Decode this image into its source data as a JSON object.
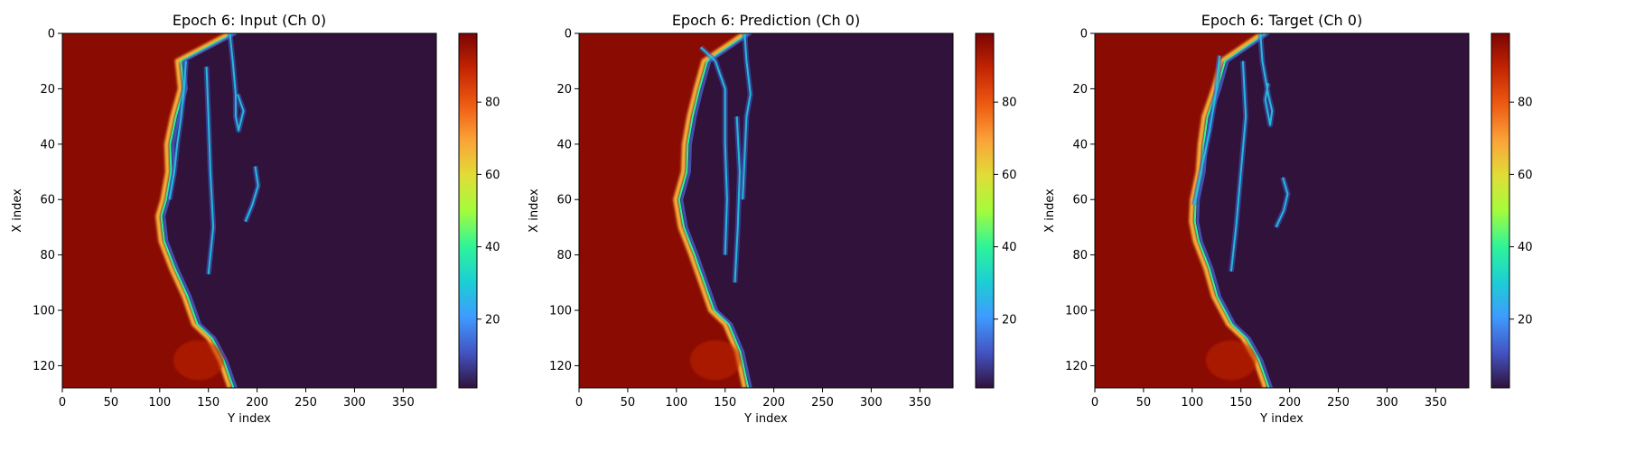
{
  "chart_data": [
    {
      "type": "heatmap",
      "title": "Epoch 6: Input (Ch 0)",
      "xlabel": "Y index",
      "ylabel": "X index",
      "xlim": [
        0,
        384
      ],
      "ylim": [
        128,
        0
      ],
      "xticks": [
        0,
        50,
        100,
        150,
        200,
        250,
        300,
        350
      ],
      "yticks": [
        0,
        20,
        40,
        60,
        80,
        100,
        120
      ],
      "colorbar_range": [
        1,
        99
      ],
      "colorbar_ticks": [
        20,
        40,
        60,
        80
      ],
      "colormap": "turbo",
      "front_profile": [
        {
          "x": 0,
          "y": 172
        },
        {
          "x": 10,
          "y": 118
        },
        {
          "x": 20,
          "y": 121
        },
        {
          "x": 30,
          "y": 113
        },
        {
          "x": 40,
          "y": 107
        },
        {
          "x": 50,
          "y": 108
        },
        {
          "x": 60,
          "y": 103
        },
        {
          "x": 66,
          "y": 98
        },
        {
          "x": 75,
          "y": 101
        },
        {
          "x": 85,
          "y": 112
        },
        {
          "x": 95,
          "y": 125
        },
        {
          "x": 105,
          "y": 135
        },
        {
          "x": 110,
          "y": 150
        },
        {
          "x": 118,
          "y": 162
        },
        {
          "x": 128,
          "y": 172
        }
      ],
      "filaments": [
        [
          [
            0,
            172
          ],
          [
            10,
            175
          ],
          [
            22,
            178
          ],
          [
            30,
            178
          ],
          [
            35,
            181
          ],
          [
            28,
            186
          ],
          [
            22,
            180
          ]
        ],
        [
          [
            10,
            127
          ],
          [
            20,
            125
          ],
          [
            30,
            122
          ],
          [
            40,
            118
          ],
          [
            50,
            115
          ],
          [
            60,
            110
          ]
        ],
        [
          [
            12,
            148
          ],
          [
            30,
            150
          ],
          [
            50,
            152
          ],
          [
            70,
            155
          ],
          [
            87,
            150
          ]
        ],
        [
          [
            48,
            198
          ],
          [
            55,
            201
          ],
          [
            62,
            195
          ],
          [
            68,
            188
          ]
        ]
      ]
    },
    {
      "type": "heatmap",
      "title": "Epoch 6: Prediction (Ch 0)",
      "xlabel": "Y index",
      "ylabel": "X index",
      "xlim": [
        0,
        384
      ],
      "ylim": [
        128,
        0
      ],
      "xticks": [
        0,
        50,
        100,
        150,
        200,
        250,
        300,
        350
      ],
      "yticks": [
        0,
        20,
        40,
        60,
        80,
        100,
        120
      ],
      "colorbar_range": [
        1,
        99
      ],
      "colorbar_ticks": [
        20,
        40,
        60,
        80
      ],
      "colormap": "turbo",
      "front_profile": [
        {
          "x": 0,
          "y": 170
        },
        {
          "x": 10,
          "y": 128
        },
        {
          "x": 20,
          "y": 120
        },
        {
          "x": 30,
          "y": 113
        },
        {
          "x": 40,
          "y": 108
        },
        {
          "x": 50,
          "y": 107
        },
        {
          "x": 60,
          "y": 99
        },
        {
          "x": 70,
          "y": 104
        },
        {
          "x": 80,
          "y": 115
        },
        {
          "x": 90,
          "y": 125
        },
        {
          "x": 100,
          "y": 135
        },
        {
          "x": 105,
          "y": 150
        },
        {
          "x": 115,
          "y": 162
        },
        {
          "x": 128,
          "y": 170
        }
      ],
      "filaments": [
        [
          [
            0,
            170
          ],
          [
            10,
            172
          ],
          [
            22,
            176
          ],
          [
            30,
            172
          ],
          [
            45,
            170
          ],
          [
            60,
            168
          ]
        ],
        [
          [
            5,
            125
          ],
          [
            10,
            140
          ],
          [
            20,
            150
          ],
          [
            40,
            150
          ],
          [
            60,
            152
          ],
          [
            80,
            150
          ]
        ],
        [
          [
            30,
            162
          ],
          [
            50,
            165
          ],
          [
            70,
            163
          ],
          [
            90,
            160
          ]
        ]
      ]
    },
    {
      "type": "heatmap",
      "title": "Epoch 6: Target (Ch 0)",
      "xlabel": "Y index",
      "ylabel": "X index",
      "xlim": [
        0,
        384
      ],
      "ylim": [
        128,
        0
      ],
      "xticks": [
        0,
        50,
        100,
        150,
        200,
        250,
        300,
        350
      ],
      "yticks": [
        0,
        20,
        40,
        60,
        80,
        100,
        120
      ],
      "colorbar_range": [
        1,
        99
      ],
      "colorbar_ticks": [
        20,
        40,
        60,
        80
      ],
      "colormap": "turbo",
      "front_profile": [
        {
          "x": 0,
          "y": 172
        },
        {
          "x": 10,
          "y": 130
        },
        {
          "x": 20,
          "y": 122
        },
        {
          "x": 30,
          "y": 112
        },
        {
          "x": 40,
          "y": 108
        },
        {
          "x": 50,
          "y": 106
        },
        {
          "x": 60,
          "y": 100
        },
        {
          "x": 68,
          "y": 99
        },
        {
          "x": 75,
          "y": 103
        },
        {
          "x": 85,
          "y": 114
        },
        {
          "x": 95,
          "y": 122
        },
        {
          "x": 105,
          "y": 137
        },
        {
          "x": 110,
          "y": 152
        },
        {
          "x": 118,
          "y": 165
        },
        {
          "x": 128,
          "y": 175
        }
      ],
      "filaments": [
        [
          [
            0,
            170
          ],
          [
            10,
            172
          ],
          [
            22,
            178
          ],
          [
            28,
            182
          ],
          [
            33,
            180
          ],
          [
            24,
            175
          ],
          [
            18,
            178
          ]
        ],
        [
          [
            8,
            128
          ],
          [
            20,
            125
          ],
          [
            35,
            118
          ],
          [
            45,
            112
          ],
          [
            55,
            106
          ],
          [
            62,
            102
          ]
        ],
        [
          [
            10,
            152
          ],
          [
            30,
            155
          ],
          [
            50,
            150
          ],
          [
            70,
            145
          ],
          [
            86,
            140
          ]
        ],
        [
          [
            52,
            193
          ],
          [
            58,
            198
          ],
          [
            64,
            194
          ],
          [
            70,
            186
          ]
        ]
      ]
    }
  ]
}
